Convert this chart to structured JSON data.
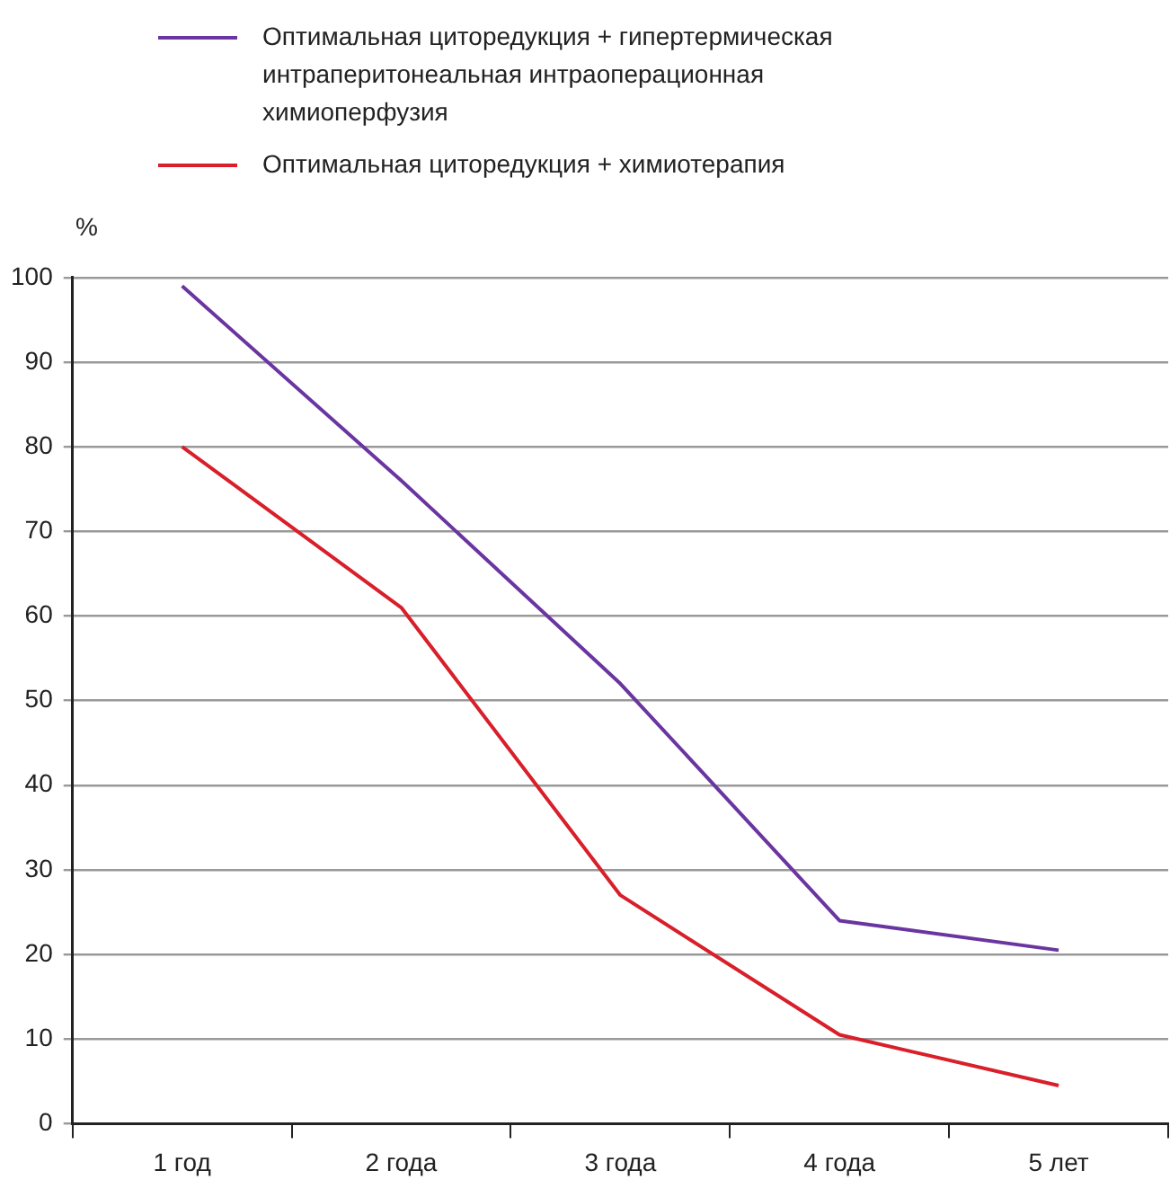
{
  "chart_data": {
    "type": "line",
    "ylabel": "%",
    "categories": [
      "1 год",
      "2 года",
      "3 года",
      "4 года",
      "5 лет"
    ],
    "series": [
      {
        "name": "Оптимальная циторедукция + гипертермическая интраперитонеальная интраоперационная химиоперфузия",
        "color": "#6a35a0",
        "values": [
          99,
          76,
          52,
          24,
          20.5
        ]
      },
      {
        "name": "Оптимальная циторедукция + химиотерапия",
        "color": "#d81f2a",
        "values": [
          80,
          61,
          27,
          10.5,
          4.5
        ]
      }
    ],
    "ylim": [
      0,
      100
    ],
    "yticks": [
      0,
      10,
      20,
      30,
      40,
      50,
      60,
      70,
      80,
      90,
      100
    ],
    "grid": "y",
    "legend": "top",
    "marker": "none",
    "line_style": "solid"
  }
}
